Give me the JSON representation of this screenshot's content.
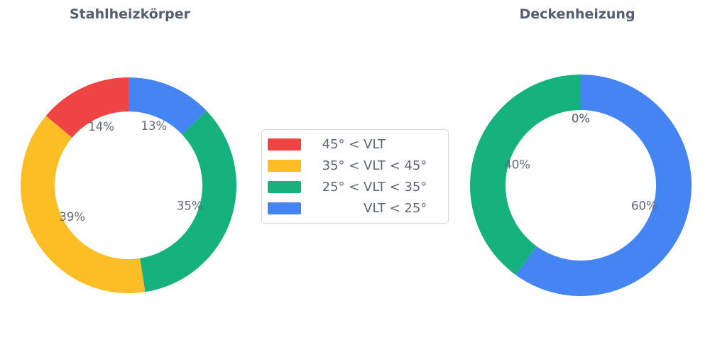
{
  "figure": {
    "background": "#ffffff",
    "title_color": "#555e6e",
    "label_color": "#5f6773",
    "legend_border_color": "#d4d7db"
  },
  "legend": {
    "items": [
      {
        "label": "45° < VLT",
        "prefix": "45° < ",
        "mid": "VLT",
        "suffix": "",
        "color": "#ef4444"
      },
      {
        "label": "35° < VLT < 45°",
        "prefix": "35° < ",
        "mid": "VLT",
        "suffix": " < 45°",
        "color": "#fbbe24"
      },
      {
        "label": "25° < VLT < 35°",
        "prefix": "25° < ",
        "mid": "VLT",
        "suffix": " < 35°",
        "color": "#16b27d"
      },
      {
        "label": "VLT < 25°",
        "prefix": "",
        "mid": "VLT",
        "suffix": " < 25°",
        "color": "#4484f3"
      }
    ]
  },
  "chart_data": [
    {
      "type": "pie",
      "subtype": "donut",
      "title": "Stahlheizkörper",
      "categories": [
        "45° < VLT",
        "35° < VLT < 45°",
        "25° < VLT < 35°",
        "VLT < 25°"
      ],
      "values": [
        14,
        39,
        35,
        13
      ],
      "value_labels": [
        "14%",
        "39%",
        "35%",
        "13%"
      ],
      "colors": [
        "#ef4444",
        "#fbbe24",
        "#16b27d",
        "#4484f3"
      ],
      "start_angle": 90,
      "direction": "counterclockwise",
      "hole_ratio": 0.68,
      "label_distance_ratio": 0.6,
      "label_color": "#5f6773",
      "legend_position": "center-between-charts"
    },
    {
      "type": "pie",
      "subtype": "donut",
      "title": "Deckenheizung",
      "categories": [
        "45° < VLT",
        "35° < VLT < 45°",
        "25° < VLT < 35°",
        "VLT < 25°"
      ],
      "values": [
        0,
        0,
        40,
        60
      ],
      "value_labels": [
        "0%",
        "0%",
        "40%",
        "60%"
      ],
      "colors": [
        "#ef4444",
        "#fbbe24",
        "#16b27d",
        "#4484f3"
      ],
      "start_angle": 90,
      "direction": "counterclockwise",
      "hole_ratio": 0.68,
      "label_distance_ratio": 0.6,
      "label_color": "#5f6773",
      "legend_position": "center-between-charts"
    }
  ]
}
